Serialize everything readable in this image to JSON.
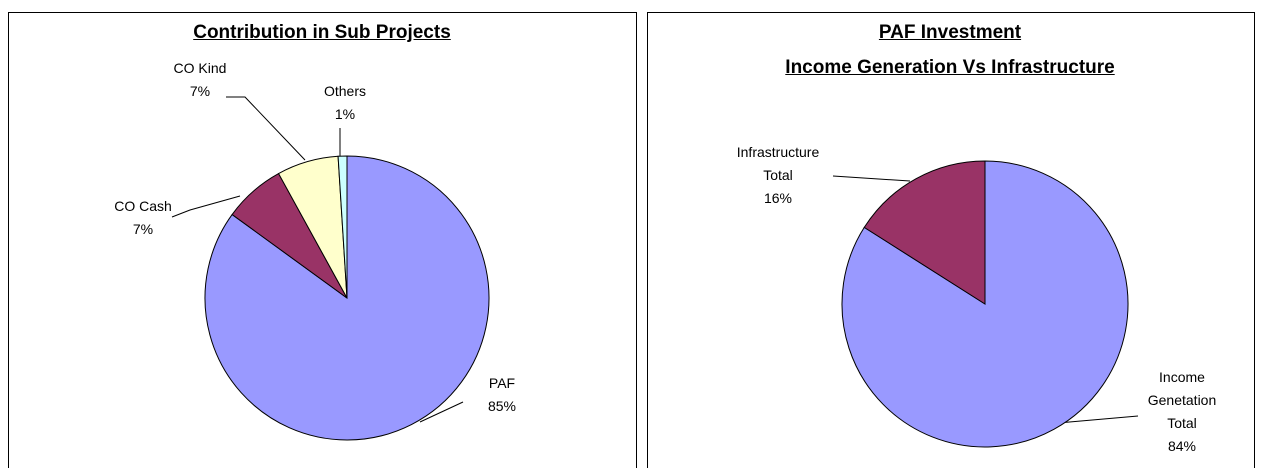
{
  "chart_data": [
    {
      "type": "pie",
      "title": [
        "Contribution in Sub Projects"
      ],
      "categories": [
        "PAF",
        "CO Cash",
        "CO Kind",
        "Others"
      ],
      "values": [
        85,
        7,
        7,
        1
      ],
      "value_labels": [
        "85%",
        "7%",
        "7%",
        "1%"
      ],
      "colors": [
        "#9999ff",
        "#993366",
        "#ffffcc",
        "#ccffff"
      ]
    },
    {
      "type": "pie",
      "title": [
        "PAF Investment",
        "Income Generation Vs Infrastructure"
      ],
      "categories": [
        "Income Genetation Total",
        "Infrastructure Total"
      ],
      "values": [
        84,
        16
      ],
      "value_labels": [
        "84%",
        "16%"
      ],
      "colors": [
        "#9999ff",
        "#993366"
      ]
    }
  ]
}
